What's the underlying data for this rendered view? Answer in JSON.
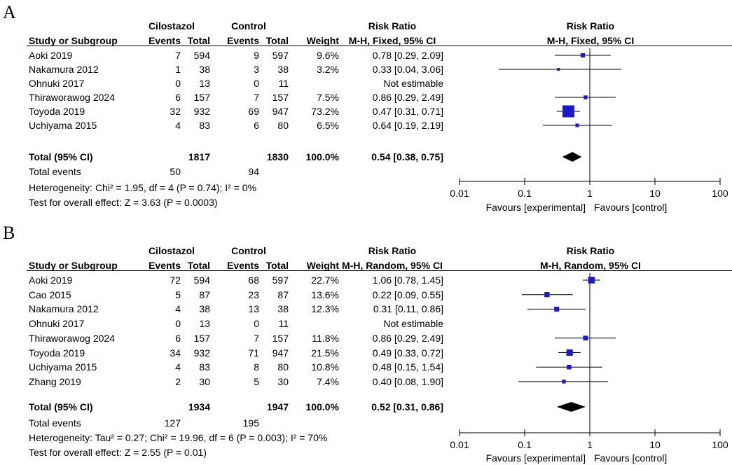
{
  "chart_data": [
    {
      "type": "forest",
      "panel_label": "A",
      "header": {
        "group1": "Cilostazol",
        "group2": "Control",
        "study_col": "Study or Subgroup",
        "events": "Events",
        "total": "Total",
        "weight": "Weight",
        "rr_title": "Risk Ratio",
        "rr_method": "M-H, Fixed, 95% CI",
        "plot_title": "Risk Ratio",
        "plot_method": "M-H, Fixed, 95% CI"
      },
      "studies": [
        {
          "name": "Aoki 2019",
          "e1": "7",
          "n1": "594",
          "e2": "9",
          "n2": "597",
          "weight_text": "9.6%",
          "weight": 9.6,
          "ci_text": "0.78 [0.29, 2.09]",
          "rr": 0.78,
          "lo": 0.29,
          "hi": 2.09
        },
        {
          "name": "Nakamura 2012",
          "e1": "1",
          "n1": "38",
          "e2": "3",
          "n2": "38",
          "weight_text": "3.2%",
          "weight": 3.2,
          "ci_text": "0.33 [0.04, 3.06]",
          "rr": 0.33,
          "lo": 0.04,
          "hi": 3.06
        },
        {
          "name": "Ohnuki 2017",
          "e1": "0",
          "n1": "13",
          "e2": "0",
          "n2": "11",
          "weight_text": "",
          "weight": 0,
          "ci_text": "Not estimable",
          "rr": null,
          "lo": null,
          "hi": null
        },
        {
          "name": "Thiraworawog 2024",
          "e1": "6",
          "n1": "157",
          "e2": "7",
          "n2": "157",
          "weight_text": "7.5%",
          "weight": 7.5,
          "ci_text": "0.86 [0.29, 2.49]",
          "rr": 0.86,
          "lo": 0.29,
          "hi": 2.49
        },
        {
          "name": "Toyoda 2019",
          "e1": "32",
          "n1": "932",
          "e2": "69",
          "n2": "947",
          "weight_text": "73.2%",
          "weight": 73.2,
          "ci_text": "0.47 [0.31, 0.71]",
          "rr": 0.47,
          "lo": 0.31,
          "hi": 0.71
        },
        {
          "name": "Uchiyama 2015",
          "e1": "4",
          "n1": "83",
          "e2": "6",
          "n2": "80",
          "weight_text": "6.5%",
          "weight": 6.5,
          "ci_text": "0.64 [0.19, 2.19]",
          "rr": 0.64,
          "lo": 0.19,
          "hi": 2.19
        }
      ],
      "total": {
        "label": "Total (95% CI)",
        "n1": "1817",
        "n2": "1830",
        "weight_text": "100.0%",
        "ci_text": "0.54 [0.38, 0.75]",
        "rr": 0.54,
        "lo": 0.38,
        "hi": 0.75
      },
      "total_events": {
        "label": "Total events",
        "e1": "50",
        "e2": "94"
      },
      "heterogeneity": "Heterogeneity: Chi² = 1.95, df = 4 (P = 0.74); I² = 0%",
      "overall_effect": "Test for overall effect: Z = 3.63 (P = 0.0003)",
      "axis": {
        "scale": "log",
        "ticks": [
          0.01,
          0.1,
          1,
          10,
          100
        ],
        "tick_labels": [
          "0.01",
          "0.1",
          "1",
          "10",
          "100"
        ]
      },
      "favours_left": "Favours [experimental]",
      "favours_right": "Favours [control]"
    },
    {
      "type": "forest",
      "panel_label": "B",
      "header": {
        "group1": "Cilostazol",
        "group2": "Control",
        "study_col": "Study or Subgroup",
        "events": "Events",
        "total": "Total",
        "weight": "Weight",
        "rr_title": "Risk Ratio",
        "rr_method": "M-H, Random, 95% CI",
        "plot_title": "Risk Ratio",
        "plot_method": "M-H, Random, 95% CI"
      },
      "studies": [
        {
          "name": "Aoki 2019",
          "e1": "72",
          "n1": "594",
          "e2": "68",
          "n2": "597",
          "weight_text": "22.7%",
          "weight": 22.7,
          "ci_text": "1.06 [0.78, 1.45]",
          "rr": 1.06,
          "lo": 0.78,
          "hi": 1.45
        },
        {
          "name": "Cao 2015",
          "e1": "5",
          "n1": "87",
          "e2": "23",
          "n2": "87",
          "weight_text": "13.6%",
          "weight": 13.6,
          "ci_text": "0.22 [0.09, 0.55]",
          "rr": 0.22,
          "lo": 0.09,
          "hi": 0.55
        },
        {
          "name": "Nakamura 2012",
          "e1": "4",
          "n1": "38",
          "e2": "13",
          "n2": "38",
          "weight_text": "12.3%",
          "weight": 12.3,
          "ci_text": "0.31 [0.11, 0.86]",
          "rr": 0.31,
          "lo": 0.11,
          "hi": 0.86
        },
        {
          "name": "Ohnuki 2017",
          "e1": "0",
          "n1": "13",
          "e2": "0",
          "n2": "11",
          "weight_text": "",
          "weight": 0,
          "ci_text": "Not estimable",
          "rr": null,
          "lo": null,
          "hi": null
        },
        {
          "name": "Thiraworawog 2024",
          "e1": "6",
          "n1": "157",
          "e2": "7",
          "n2": "157",
          "weight_text": "11.8%",
          "weight": 11.8,
          "ci_text": "0.86 [0.29, 2.49]",
          "rr": 0.86,
          "lo": 0.29,
          "hi": 2.49
        },
        {
          "name": "Toyoda 2019",
          "e1": "34",
          "n1": "932",
          "e2": "71",
          "n2": "947",
          "weight_text": "21.5%",
          "weight": 21.5,
          "ci_text": "0.49 [0.33, 0.72]",
          "rr": 0.49,
          "lo": 0.33,
          "hi": 0.72
        },
        {
          "name": "Uchiyama 2015",
          "e1": "4",
          "n1": "83",
          "e2": "8",
          "n2": "80",
          "weight_text": "10.8%",
          "weight": 10.8,
          "ci_text": "0.48 [0.15, 1.54]",
          "rr": 0.48,
          "lo": 0.15,
          "hi": 1.54
        },
        {
          "name": "Zhang 2019",
          "e1": "2",
          "n1": "30",
          "e2": "5",
          "n2": "30",
          "weight_text": "7.4%",
          "weight": 7.4,
          "ci_text": "0.40 [0.08, 1.90]",
          "rr": 0.4,
          "lo": 0.08,
          "hi": 1.9
        }
      ],
      "total": {
        "label": "Total (95% CI)",
        "n1": "1934",
        "n2": "1947",
        "weight_text": "100.0%",
        "ci_text": "0.52 [0.31, 0.86]",
        "rr": 0.52,
        "lo": 0.31,
        "hi": 0.86
      },
      "total_events": {
        "label": "Total events",
        "e1": "127",
        "e2": "195"
      },
      "heterogeneity": "Heterogeneity: Tau² = 0.27; Chi² = 19.96, df = 6 (P = 0.003); I² = 70%",
      "overall_effect": "Test for overall effect: Z = 2.55 (P = 0.01)",
      "axis": {
        "scale": "log",
        "ticks": [
          0.01,
          0.1,
          1,
          10,
          100
        ],
        "tick_labels": [
          "0.01",
          "0.1",
          "1",
          "10",
          "100"
        ]
      },
      "favours_left": "Favours [experimental]",
      "favours_right": "Favours [control]"
    }
  ],
  "colors": {
    "marker": "#1a1acc",
    "line": "#000000",
    "diamond": "#000000"
  }
}
